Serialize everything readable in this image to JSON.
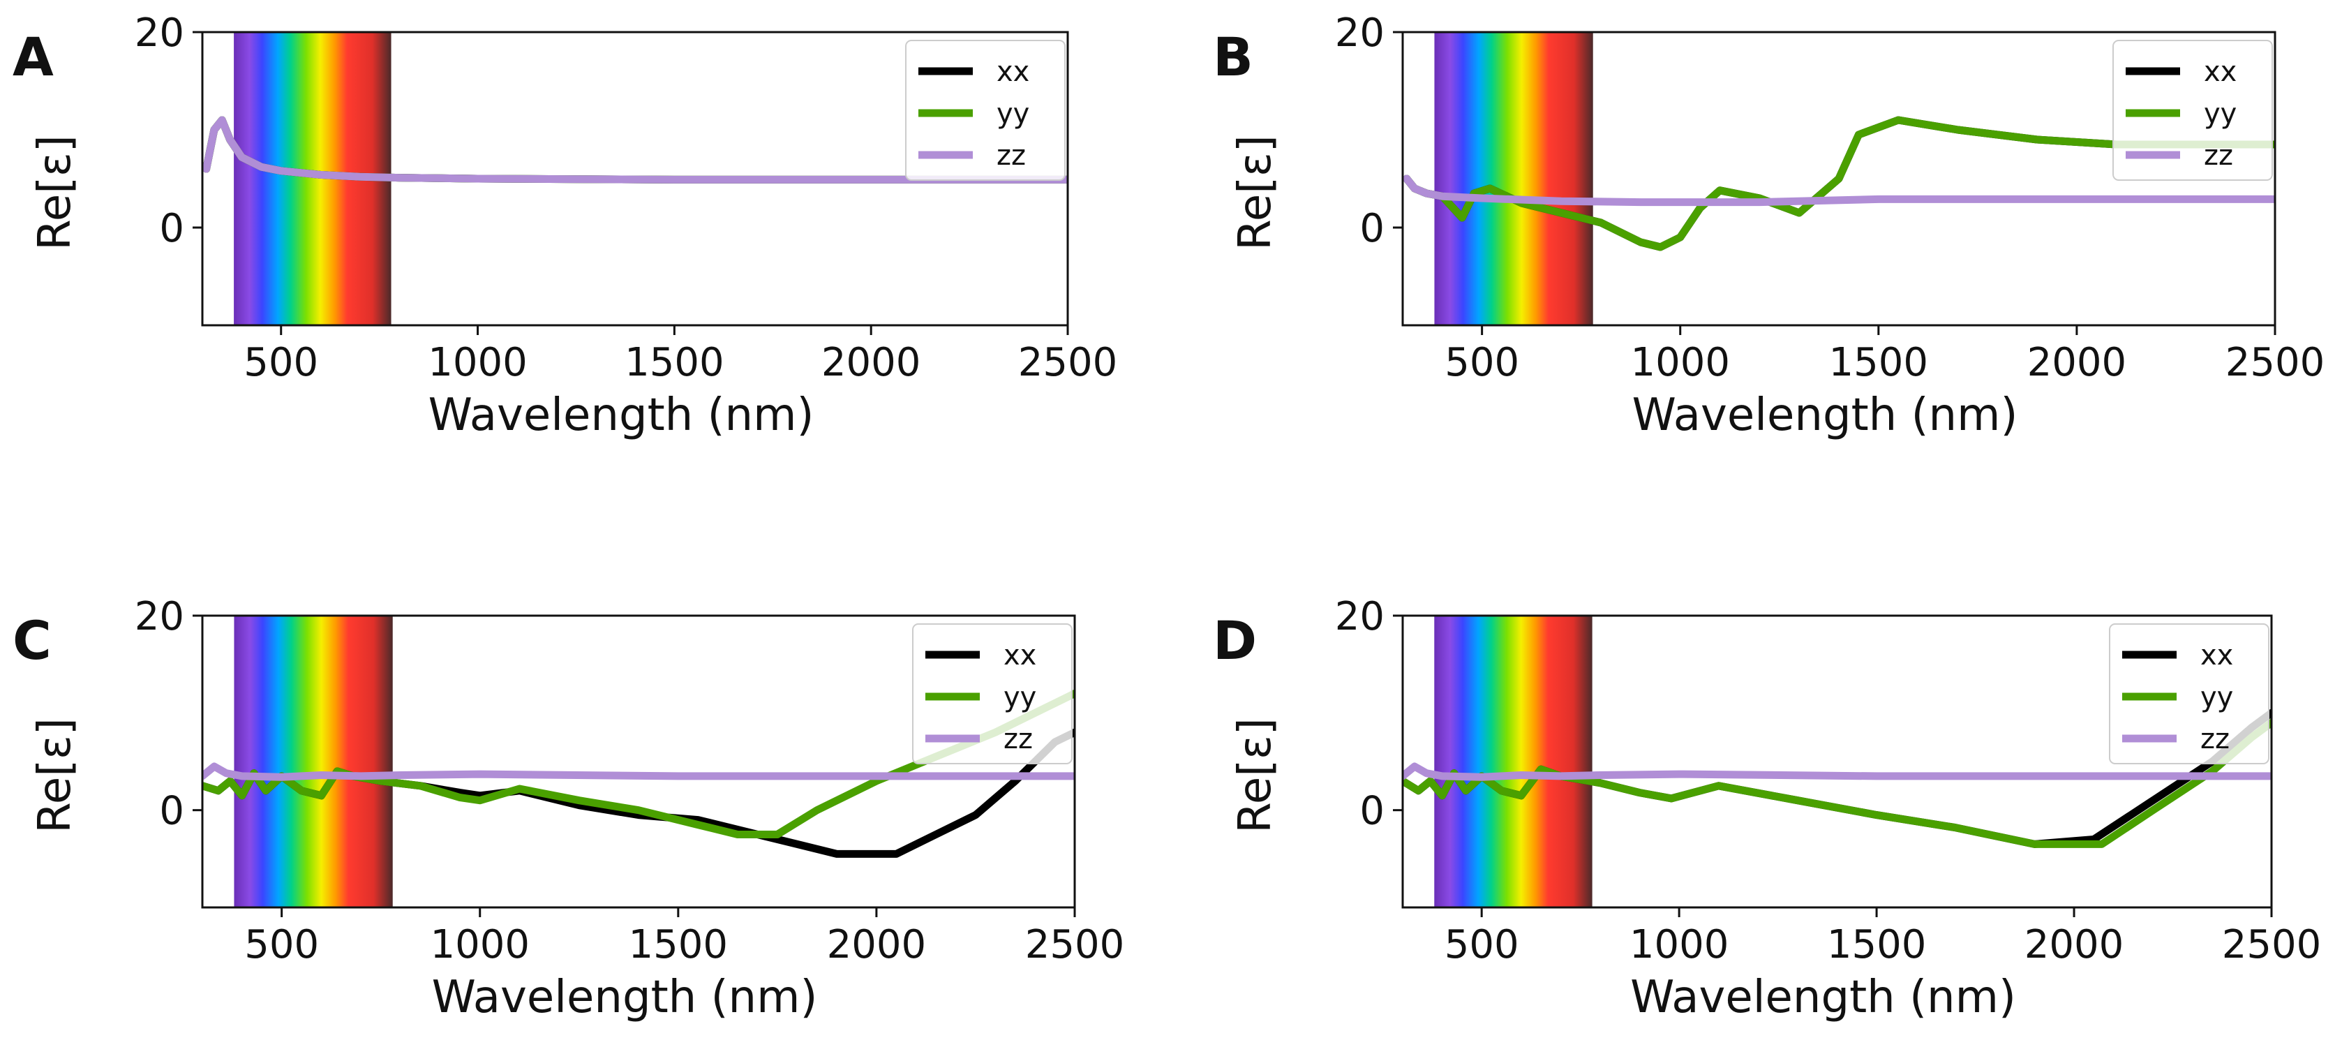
{
  "figure": {
    "description_free": true
  },
  "chart_data": [
    {
      "type": "line",
      "panel": "A",
      "xlabel": "Wavelength (nm)",
      "ylabel": "Re[ε]",
      "xlim": [
        300,
        2500
      ],
      "ylim": [
        -10,
        20
      ],
      "xticks": [
        500,
        1000,
        1500,
        2000,
        2500
      ],
      "yticks": [
        0,
        20
      ],
      "visible_band": [
        380,
        780
      ],
      "legend": [
        "xx",
        "yy",
        "zz"
      ],
      "legend_position": "top-right",
      "series": [
        {
          "name": "xx",
          "color": "#000000",
          "x": [
            310,
            330,
            350,
            370,
            400,
            450,
            500,
            600,
            700,
            800,
            1000,
            1500,
            2000,
            2500
          ],
          "y": [
            6,
            10,
            11,
            9,
            7.2,
            6.2,
            5.8,
            5.4,
            5.2,
            5.1,
            5,
            4.9,
            4.9,
            4.9
          ]
        },
        {
          "name": "yy",
          "color": "#4aa000",
          "x": [
            310,
            330,
            350,
            370,
            400,
            450,
            500,
            600,
            700,
            800,
            1000,
            1500,
            2000,
            2500
          ],
          "y": [
            6,
            10,
            11,
            9,
            7.2,
            6.2,
            5.8,
            5.4,
            5.2,
            5.1,
            5,
            4.9,
            4.9,
            4.9
          ]
        },
        {
          "name": "zz",
          "color": "#b08ed6",
          "x": [
            310,
            330,
            350,
            370,
            400,
            450,
            500,
            600,
            700,
            800,
            1000,
            1500,
            2000,
            2500
          ],
          "y": [
            6,
            10,
            11,
            9,
            7.2,
            6.2,
            5.8,
            5.4,
            5.2,
            5.1,
            5,
            4.9,
            4.9,
            4.9
          ]
        }
      ]
    },
    {
      "type": "line",
      "panel": "B",
      "xlabel": "Wavelength (nm)",
      "ylabel": "Re[ε]",
      "xlim": [
        300,
        2500
      ],
      "ylim": [
        -10,
        20
      ],
      "xticks": [
        500,
        1000,
        1500,
        2000,
        2500
      ],
      "yticks": [
        0,
        20
      ],
      "visible_band": [
        380,
        780
      ],
      "legend": [
        "xx",
        "yy",
        "zz"
      ],
      "legend_position": "top-right",
      "series": [
        {
          "name": "xx",
          "color": "#000000",
          "x": [
            310,
            330,
            360,
            400,
            450,
            480,
            520,
            600,
            700,
            800,
            900,
            950,
            1000,
            1050,
            1100,
            1200,
            1300,
            1400,
            1450,
            1550,
            1700,
            1900,
            2100,
            2500
          ],
          "y": [
            5,
            4,
            3.5,
            3.2,
            1,
            3.5,
            4,
            2.5,
            1.5,
            0.5,
            -1.5,
            -2,
            -1,
            2,
            3.8,
            3,
            1.5,
            5,
            9.5,
            11,
            10,
            9,
            8.5,
            8.5
          ]
        },
        {
          "name": "yy",
          "color": "#4aa000",
          "x": [
            310,
            330,
            360,
            400,
            450,
            480,
            520,
            600,
            700,
            800,
            900,
            950,
            1000,
            1050,
            1100,
            1200,
            1300,
            1400,
            1450,
            1550,
            1700,
            1900,
            2100,
            2500
          ],
          "y": [
            5,
            4,
            3.5,
            3.2,
            1,
            3.5,
            4,
            2.5,
            1.5,
            0.5,
            -1.5,
            -2,
            -1,
            2,
            3.8,
            3,
            1.5,
            5,
            9.5,
            11,
            10,
            9,
            8.5,
            8.5
          ]
        },
        {
          "name": "zz",
          "color": "#b08ed6",
          "x": [
            310,
            330,
            360,
            400,
            500,
            700,
            900,
            1200,
            1500,
            2000,
            2500
          ],
          "y": [
            5,
            4,
            3.5,
            3.2,
            3,
            2.7,
            2.6,
            2.6,
            2.9,
            2.9,
            2.9
          ]
        }
      ]
    },
    {
      "type": "line",
      "panel": "C",
      "xlabel": "Wavelength (nm)",
      "ylabel": "Re[ε]",
      "xlim": [
        300,
        2500
      ],
      "ylim": [
        -10,
        20
      ],
      "xticks": [
        500,
        1000,
        1500,
        2000,
        2500
      ],
      "yticks": [
        0,
        20
      ],
      "visible_band": [
        380,
        780
      ],
      "legend": [
        "xx",
        "yy",
        "zz"
      ],
      "legend_position": "top-right",
      "series": [
        {
          "name": "xx",
          "color": "#000000",
          "x": [
            300,
            340,
            370,
            400,
            430,
            460,
            500,
            550,
            600,
            640,
            680,
            750,
            850,
            950,
            1000,
            1100,
            1250,
            1400,
            1550,
            1700,
            1800,
            1900,
            2050,
            2150,
            2250,
            2350,
            2450,
            2500
          ],
          "y": [
            2.5,
            2,
            3,
            1.5,
            3.8,
            2,
            3.5,
            2,
            1.5,
            4,
            3.5,
            3,
            2.5,
            1.8,
            1.5,
            2,
            0.5,
            -0.5,
            -1,
            -2.5,
            -3.5,
            -4.5,
            -4.5,
            -2.5,
            -0.5,
            3,
            7,
            8
          ]
        },
        {
          "name": "yy",
          "color": "#4aa000",
          "x": [
            300,
            340,
            370,
            400,
            430,
            460,
            500,
            550,
            600,
            640,
            680,
            750,
            850,
            950,
            1000,
            1100,
            1250,
            1400,
            1550,
            1650,
            1750,
            1850,
            2000,
            2150,
            2300,
            2450,
            2500
          ],
          "y": [
            2.5,
            2,
            3,
            1.5,
            3.8,
            2,
            3.5,
            2,
            1.5,
            4,
            3.5,
            3,
            2.5,
            1.3,
            1,
            2.2,
            1,
            0,
            -1.5,
            -2.5,
            -2.5,
            0,
            3,
            5.5,
            8,
            11,
            12
          ]
        },
        {
          "name": "zz",
          "color": "#b08ed6",
          "x": [
            300,
            330,
            360,
            400,
            500,
            600,
            700,
            800,
            1000,
            1500,
            2000,
            2500
          ],
          "y": [
            3.5,
            4.5,
            3.8,
            3.5,
            3.4,
            3.6,
            3.5,
            3.6,
            3.7,
            3.5,
            3.5,
            3.5
          ]
        }
      ]
    },
    {
      "type": "line",
      "panel": "D",
      "xlabel": "Wavelength (nm)",
      "ylabel": "Re[ε]",
      "xlim": [
        300,
        2500
      ],
      "ylim": [
        -10,
        20
      ],
      "xticks": [
        500,
        1000,
        1500,
        2000,
        2500
      ],
      "yticks": [
        0,
        20
      ],
      "visible_band": [
        380,
        780
      ],
      "legend": [
        "xx",
        "yy",
        "zz"
      ],
      "legend_position": "top-right",
      "series": [
        {
          "name": "xx",
          "color": "#000000",
          "x": [
            300,
            340,
            370,
            400,
            430,
            460,
            500,
            550,
            600,
            650,
            700,
            800,
            900,
            980,
            1100,
            1300,
            1500,
            1700,
            1900,
            2050,
            2200,
            2350,
            2450,
            2500
          ],
          "y": [
            3,
            2,
            3,
            1.5,
            3.8,
            2,
            3.5,
            2,
            1.5,
            4.2,
            3.5,
            2.8,
            1.8,
            1.2,
            2.5,
            1,
            -0.5,
            -1.8,
            -3.5,
            -3,
            1,
            5,
            8.5,
            10
          ]
        },
        {
          "name": "yy",
          "color": "#4aa000",
          "x": [
            300,
            340,
            370,
            400,
            430,
            460,
            500,
            550,
            600,
            650,
            700,
            800,
            900,
            980,
            1100,
            1300,
            1500,
            1700,
            1900,
            2070,
            2200,
            2350,
            2450,
            2500
          ],
          "y": [
            3,
            2,
            3,
            1.5,
            3.8,
            2,
            3.5,
            2,
            1.5,
            4.2,
            3.5,
            2.8,
            1.8,
            1.2,
            2.5,
            1,
            -0.5,
            -1.8,
            -3.5,
            -3.5,
            0,
            4,
            7.5,
            9
          ]
        },
        {
          "name": "zz",
          "color": "#b08ed6",
          "x": [
            300,
            330,
            360,
            400,
            500,
            600,
            700,
            800,
            1000,
            1500,
            2000,
            2500
          ],
          "y": [
            3.5,
            4.5,
            3.8,
            3.5,
            3.4,
            3.6,
            3.5,
            3.6,
            3.7,
            3.5,
            3.5,
            3.5
          ]
        }
      ]
    }
  ]
}
